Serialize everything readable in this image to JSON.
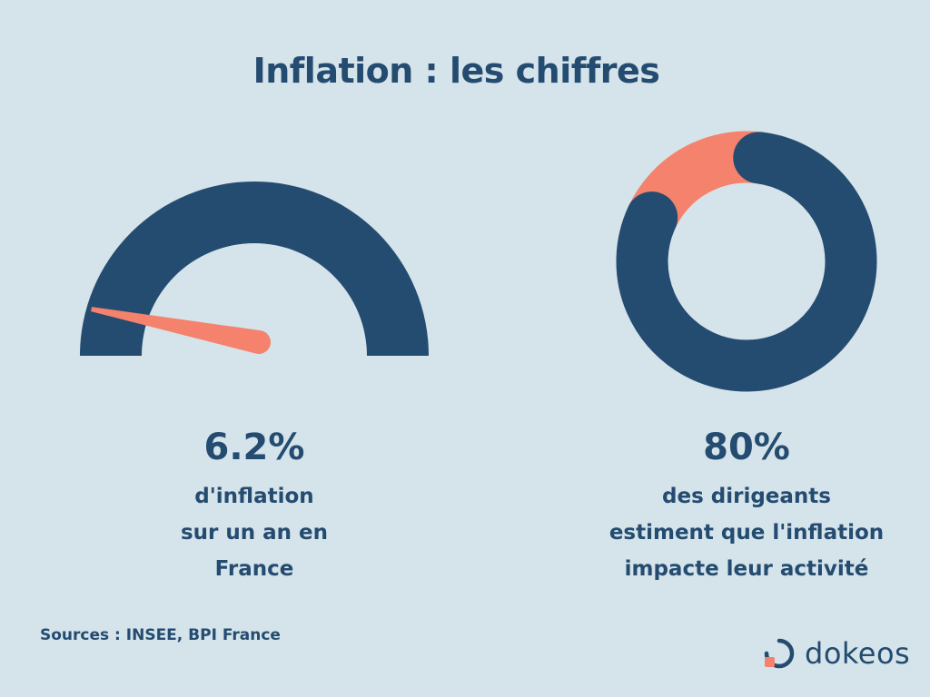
{
  "title": "Inflation : les chiffres",
  "colors": {
    "background": "#d5e3ea",
    "primary": "#244b70",
    "accent": "#f4826c"
  },
  "chart_data": [
    {
      "type": "gauge",
      "value": 6.2,
      "unit": "%",
      "value_label": "6.2%",
      "description": [
        "d'inflation",
        "sur un an en",
        "France"
      ],
      "colors": {
        "arc": "#244b70",
        "needle": "#f4826c"
      }
    },
    {
      "type": "pie",
      "variant": "donut",
      "slices": [
        {
          "value": 80,
          "color": "#244b70"
        },
        {
          "value": 20,
          "color": "#f4826c"
        }
      ],
      "value_label": "80%",
      "description": [
        "des dirigeants",
        "estiment que l'inflation",
        "impacte leur activité"
      ]
    }
  ],
  "footer": {
    "sources": "Sources : INSEE, BPI France",
    "brand": "dokeos",
    "brand_icon": "dokeos-logo-icon"
  }
}
